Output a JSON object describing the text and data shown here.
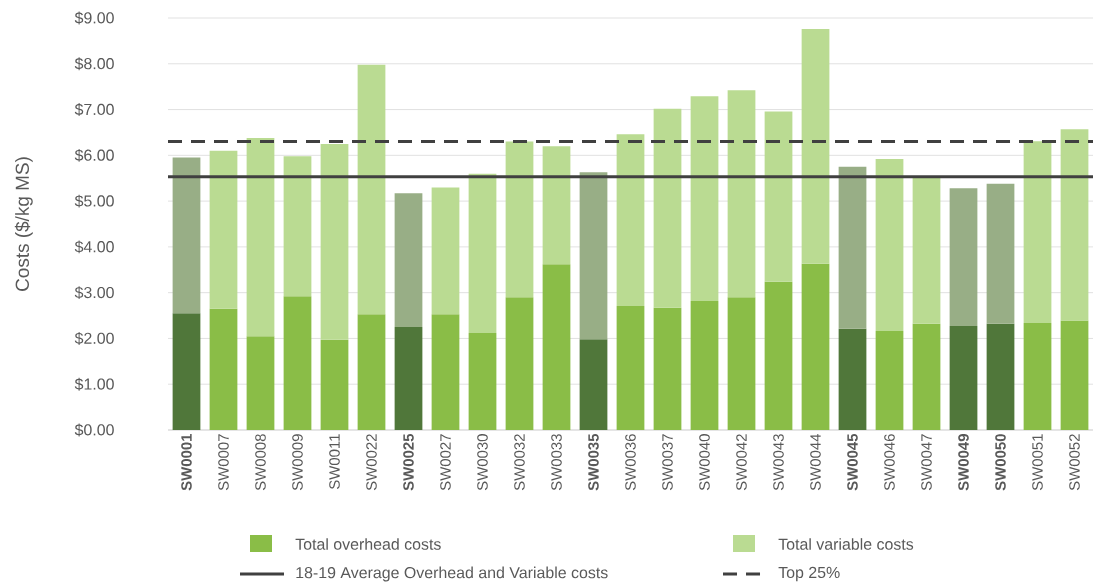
{
  "chart_data": {
    "type": "bar",
    "stacked": true,
    "ylabel": "Costs ($/kg MS)",
    "categories": [
      "**SW0001**",
      "SW0007",
      "SW0008",
      "SW0009",
      "SW0011",
      "SW0022",
      "**SW0025**",
      "SW0027",
      "SW0030",
      "SW0032",
      "SW0033",
      "**SW0035**",
      "SW0036",
      "SW0037",
      "SW0040",
      "SW0042",
      "SW0043",
      "SW0044",
      "**SW0045**",
      "SW0046",
      "SW0047",
      "**SW0049**",
      "**SW0050**",
      "SW0051",
      "SW0052"
    ],
    "series": [
      {
        "name": "Total overhead costs",
        "color": "#8abd47",
        "colors": [
          "#50773a",
          "#8abd47",
          "#8abd47",
          "#8abd47",
          "#8abd47",
          "#8abd47",
          "#50773a",
          "#8abd47",
          "#8abd47",
          "#8abd47",
          "#8abd47",
          "#50773a",
          "#8abd47",
          "#8abd47",
          "#8abd47",
          "#8abd47",
          "#8abd47",
          "#8abd47",
          "#50773a",
          "#8abd47",
          "#8abd47",
          "#50773a",
          "#50773a",
          "#8abd47",
          "#8abd47"
        ],
        "values": [
          2.55,
          2.65,
          2.05,
          2.92,
          1.97,
          2.53,
          2.25,
          2.53,
          2.12,
          2.9,
          3.62,
          1.98,
          2.71,
          2.67,
          2.82,
          2.9,
          3.24,
          3.63,
          2.21,
          2.16,
          2.32,
          2.27,
          2.32,
          2.34,
          2.39
        ]
      },
      {
        "name": "Total variable costs",
        "color": "#badb92",
        "colors": [
          "#98ae86",
          "#badb92",
          "#badb92",
          "#badb92",
          "#badb92",
          "#badb92",
          "#98ae86",
          "#badb92",
          "#badb92",
          "#badb92",
          "#badb92",
          "#98ae86",
          "#badb92",
          "#badb92",
          "#badb92",
          "#badb92",
          "#badb92",
          "#badb92",
          "#98ae86",
          "#badb92",
          "#badb92",
          "#98ae86",
          "#98ae86",
          "#badb92",
          "#badb92"
        ],
        "values": [
          3.4,
          3.45,
          4.33,
          3.06,
          4.28,
          5.45,
          2.92,
          2.77,
          3.48,
          3.4,
          2.58,
          3.65,
          3.75,
          4.35,
          4.47,
          4.52,
          3.72,
          5.13,
          3.54,
          3.76,
          3.2,
          3.01,
          3.06,
          3.97,
          4.18
        ]
      }
    ],
    "ref_lines": [
      {
        "axis": "y",
        "value": 5.53,
        "label": "18-19 Average Overhead and Variable costs",
        "color": "#404040",
        "line_style": "solid"
      },
      {
        "axis": "y",
        "value": 6.3,
        "label": "Top 25%",
        "color": "#404040",
        "line_style": "dashed"
      }
    ],
    "ylim": [
      0,
      9
    ],
    "yticks": [
      {
        "value": 0,
        "label": "$0.00"
      },
      {
        "value": 1,
        "label": "$1.00"
      },
      {
        "value": 2,
        "label": "$2.00"
      },
      {
        "value": 3,
        "label": "$3.00"
      },
      {
        "value": 4,
        "label": "$4.00"
      },
      {
        "value": 5,
        "label": "$5.00"
      },
      {
        "value": 6,
        "label": "$6.00"
      },
      {
        "value": 7,
        "label": "$7.00"
      },
      {
        "value": 8,
        "label": "$8.00"
      },
      {
        "value": 9,
        "label": "$9.00"
      }
    ],
    "grid": "y",
    "legend": "bottom"
  }
}
